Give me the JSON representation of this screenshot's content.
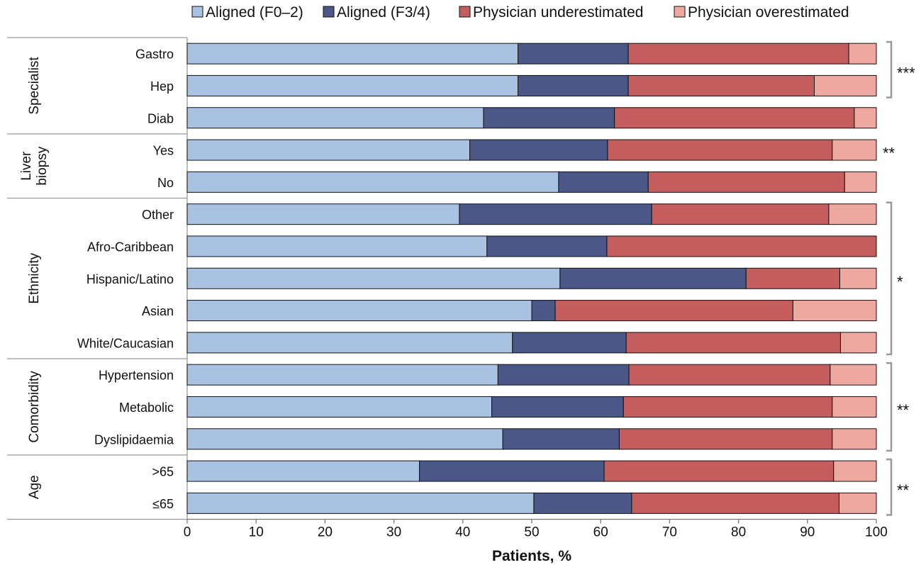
{
  "chart_data": {
    "type": "bar",
    "stacked": true,
    "orientation": "horizontal",
    "xlabel": "Patients, %",
    "xlim": [
      0,
      100
    ],
    "xticks": [
      "0",
      "10",
      "20",
      "30",
      "40",
      "50",
      "60",
      "70",
      "80",
      "90",
      "100"
    ],
    "legend_position": "top",
    "series": [
      {
        "name": "Aligned (F0–2)",
        "color": "#a9c2e2"
      },
      {
        "name": "Aligned (F3/4)",
        "color": "#4a5787"
      },
      {
        "name": "Physician underestimated",
        "color": "#c45e5e"
      },
      {
        "name": "Physician overestimated",
        "color": "#eda9a0"
      }
    ],
    "groups": [
      {
        "name": "Specialist",
        "name_lines": [
          "Specialist"
        ],
        "significance": "***",
        "bracket_rows": [
          "Gastro",
          "Hep"
        ],
        "rows": [
          {
            "label": "Gastro",
            "values": [
              48.0,
              16.0,
              32.0,
              4.0
            ]
          },
          {
            "label": "Hep",
            "values": [
              48.0,
              16.0,
              27.0,
              9.0
            ]
          },
          {
            "label": "Diab",
            "values": [
              43.0,
              19.0,
              34.8,
              3.2
            ]
          }
        ]
      },
      {
        "name": "Liver biopsy",
        "name_lines": [
          "Liver",
          "biopsy"
        ],
        "significance": "**",
        "bracket_rows": [],
        "rows": [
          {
            "label": "Yes",
            "values": [
              41.0,
              20.0,
              32.6,
              6.4
            ]
          },
          {
            "label": "No",
            "values": [
              53.9,
              13.0,
              28.5,
              4.6
            ]
          }
        ]
      },
      {
        "name": "Ethnicity",
        "name_lines": [
          "Ethnicity"
        ],
        "significance": "*",
        "bracket_rows": [
          "Other",
          "Afro-Caribbean",
          "Hispanic/Latino",
          "Asian",
          "White/Caucasian"
        ],
        "rows": [
          {
            "label": "Other",
            "values": [
              39.5,
              27.9,
              25.7,
              6.9
            ]
          },
          {
            "label": "Afro-Caribbean",
            "values": [
              43.5,
              17.4,
              39.1,
              0
            ]
          },
          {
            "label": "Hispanic/Latino",
            "values": [
              54.1,
              27.0,
              13.6,
              5.3
            ]
          },
          {
            "label": "Asian",
            "values": [
              50.0,
              3.4,
              34.5,
              12.1
            ]
          },
          {
            "label": "White/Caucasian",
            "values": [
              47.2,
              16.5,
              31.1,
              5.2
            ]
          }
        ]
      },
      {
        "name": "Comorbidity",
        "name_lines": [
          "Comorbidity"
        ],
        "significance": "**",
        "bracket_rows": [
          "Hypertension",
          "Metabolic",
          "Dyslipidaemia"
        ],
        "rows": [
          {
            "label": "Hypertension",
            "values": [
              45.1,
              19.0,
              29.2,
              6.7
            ]
          },
          {
            "label": "Metabolic",
            "values": [
              44.2,
              19.1,
              30.3,
              6.4
            ]
          },
          {
            "label": "Dyslipidaemia",
            "values": [
              45.8,
              16.9,
              30.9,
              6.4
            ]
          }
        ]
      },
      {
        "name": "Age",
        "name_lines": [
          "Age"
        ],
        "significance": "**",
        "bracket_rows": [
          ">65",
          "≤65"
        ],
        "rows": [
          {
            "label": ">65",
            "values": [
              33.7,
              26.8,
              33.3,
              6.2
            ]
          },
          {
            "label": "≤65",
            "values": [
              50.3,
              14.2,
              30.1,
              5.4
            ]
          }
        ]
      }
    ]
  }
}
